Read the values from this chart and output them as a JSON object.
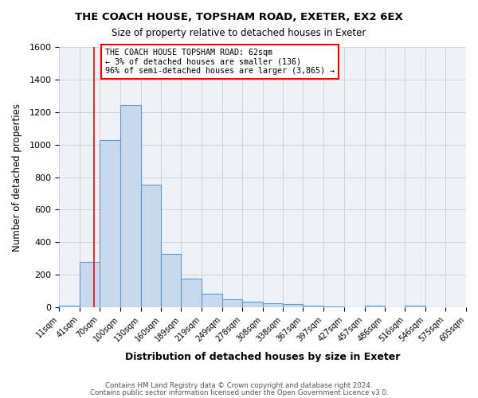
{
  "title1": "THE COACH HOUSE, TOPSHAM ROAD, EXETER, EX2 6EX",
  "title2": "Size of property relative to detached houses in Exeter",
  "xlabel": "Distribution of detached houses by size in Exeter",
  "ylabel": "Number of detached properties",
  "footnote1": "Contains HM Land Registry data © Crown copyright and database right 2024.",
  "footnote2": "Contains public sector information licensed under the Open Government Licence v3.0.",
  "bin_labels": [
    "11sqm",
    "41sqm",
    "70sqm",
    "100sqm",
    "130sqm",
    "160sqm",
    "189sqm",
    "219sqm",
    "249sqm",
    "278sqm",
    "308sqm",
    "338sqm",
    "367sqm",
    "397sqm",
    "427sqm",
    "457sqm",
    "486sqm",
    "516sqm",
    "546sqm",
    "575sqm",
    "605sqm"
  ],
  "bar_heights": [
    10,
    280,
    1030,
    1245,
    755,
    330,
    178,
    83,
    48,
    37,
    25,
    18,
    12,
    7,
    0,
    12,
    0,
    12,
    0,
    0
  ],
  "bar_color": "#c9d9ed",
  "bar_edge_color": "#5b9bd5",
  "red_line_x": 62,
  "bin_edges": [
    11,
    41,
    70,
    100,
    130,
    160,
    189,
    219,
    249,
    278,
    308,
    338,
    367,
    397,
    427,
    457,
    486,
    516,
    546,
    575,
    605
  ],
  "ylim": [
    0,
    1600
  ],
  "yticks": [
    0,
    200,
    400,
    600,
    800,
    1000,
    1200,
    1400,
    1600
  ],
  "annotation_line1": "THE COACH HOUSE TOPSHAM ROAD: 62sqm",
  "annotation_line2": "← 3% of detached houses are smaller (136)",
  "annotation_line3": "96% of semi-detached houses are larger (3,865) →",
  "bg_color": "#eef2f8"
}
